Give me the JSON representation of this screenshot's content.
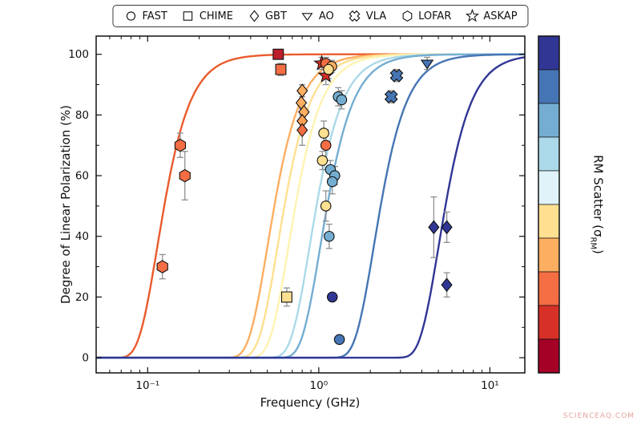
{
  "figure": {
    "watermark": "SCIENCEAQ.COM"
  },
  "legend": {
    "items": [
      {
        "marker": "circle",
        "label": "FAST"
      },
      {
        "marker": "square",
        "label": "CHIME"
      },
      {
        "marker": "diamond",
        "label": "GBT"
      },
      {
        "marker": "triangle-down",
        "label": "AO"
      },
      {
        "marker": "x-square",
        "label": "VLA"
      },
      {
        "marker": "hexagon",
        "label": "LOFAR"
      },
      {
        "marker": "star",
        "label": "ASKAP"
      }
    ]
  },
  "chart_data": {
    "type": "scatter",
    "title": "",
    "xlabel": "Frequency (GHz)",
    "ylabel": "Degree of Linear Polarization (%)",
    "x_scale": "log",
    "xlim": [
      0.05,
      16
    ],
    "ylim": [
      -5,
      106
    ],
    "grid": false,
    "legend_position": "top-center",
    "x_ticks": [
      {
        "value": 0.1,
        "label": "10⁻¹"
      },
      {
        "value": 1,
        "label": "10⁰"
      },
      {
        "value": 10,
        "label": "10¹"
      }
    ],
    "y_ticks": [
      0,
      20,
      40,
      60,
      80,
      100
    ],
    "colorbar": {
      "label_prefix": "RM Scatter (σ",
      "label_sub": "RM",
      "label_suffix": ")",
      "colors_top_to_bottom": [
        "#313695",
        "#4575b4",
        "#74add1",
        "#abd9e9",
        "#e0f3f8",
        "#fee090",
        "#fdae61",
        "#f46d43",
        "#d73027",
        "#a50026"
      ]
    },
    "curves": [
      {
        "nu_half_ghz": 0.125,
        "color": "#ea5b2d"
      },
      {
        "nu_half_ghz": 0.55,
        "color": "#fdae61"
      },
      {
        "nu_half_ghz": 0.63,
        "color": "#fee090"
      },
      {
        "nu_half_ghz": 0.73,
        "color": "#fff3b0"
      },
      {
        "nu_half_ghz": 0.97,
        "color": "#abd9e9"
      },
      {
        "nu_half_ghz": 1.12,
        "color": "#74add1"
      },
      {
        "nu_half_ghz": 2.3,
        "color": "#4575b4"
      },
      {
        "nu_half_ghz": 5.5,
        "color": "#313695"
      }
    ],
    "points": [
      {
        "telescope": "LOFAR",
        "marker": "hexagon",
        "color": "#f46d43",
        "x": 0.155,
        "y": 70,
        "yerr": 4
      },
      {
        "telescope": "LOFAR",
        "marker": "hexagon",
        "color": "#f46d43",
        "x": 0.165,
        "y": 60,
        "yerr": 8
      },
      {
        "telescope": "LOFAR",
        "marker": "hexagon",
        "color": "#f46d43",
        "x": 0.122,
        "y": 30,
        "yerr": 4
      },
      {
        "telescope": "CHIME",
        "marker": "square",
        "color": "#bb1f2a",
        "x": 0.58,
        "y": 100,
        "yerr": 1
      },
      {
        "telescope": "CHIME",
        "marker": "square",
        "color": "#f46d43",
        "x": 0.6,
        "y": 95,
        "yerr": 2
      },
      {
        "telescope": "CHIME",
        "marker": "square",
        "color": "#fee090",
        "x": 0.65,
        "y": 20,
        "yerr": 3
      },
      {
        "telescope": "GBT",
        "marker": "diamond",
        "color": "#fdae61",
        "x": 0.8,
        "y": 88,
        "yerr": 2
      },
      {
        "telescope": "GBT",
        "marker": "diamond",
        "color": "#fdae61",
        "x": 0.79,
        "y": 84,
        "yerr": 3
      },
      {
        "telescope": "GBT",
        "marker": "diamond",
        "color": "#fdae61",
        "x": 0.82,
        "y": 81,
        "yerr": 3
      },
      {
        "telescope": "GBT",
        "marker": "diamond",
        "color": "#f9a054",
        "x": 0.8,
        "y": 78,
        "yerr": 4
      },
      {
        "telescope": "GBT",
        "marker": "diamond",
        "color": "#f46d43",
        "x": 0.8,
        "y": 75,
        "yerr": 5
      },
      {
        "telescope": "ASKAP",
        "marker": "star",
        "color": "#d73027",
        "x": 1.04,
        "y": 97,
        "yerr": 2
      },
      {
        "telescope": "ASKAP",
        "marker": "star",
        "color": "#d73027",
        "x": 1.1,
        "y": 93,
        "yerr": 3
      },
      {
        "telescope": "FAST",
        "marker": "circle",
        "color": "#f46d43",
        "x": 1.1,
        "y": 97,
        "yerr": 2
      },
      {
        "telescope": "FAST",
        "marker": "circle",
        "color": "#fdae61",
        "x": 1.19,
        "y": 96,
        "yerr": 2
      },
      {
        "telescope": "FAST",
        "marker": "circle",
        "color": "#fee090",
        "x": 1.14,
        "y": 95,
        "yerr": 3
      },
      {
        "telescope": "FAST",
        "marker": "circle",
        "color": "#74add1",
        "x": 1.3,
        "y": 86,
        "yerr": 3
      },
      {
        "telescope": "FAST",
        "marker": "circle",
        "color": "#74add1",
        "x": 1.36,
        "y": 85,
        "yerr": 3
      },
      {
        "telescope": "FAST",
        "marker": "circle",
        "color": "#fee090",
        "x": 1.07,
        "y": 74,
        "yerr": 4
      },
      {
        "telescope": "FAST",
        "marker": "circle",
        "color": "#f46d43",
        "x": 1.1,
        "y": 70,
        "yerr": 5
      },
      {
        "telescope": "FAST",
        "marker": "circle",
        "color": "#fee090",
        "x": 1.05,
        "y": 65,
        "yerr": 3
      },
      {
        "telescope": "FAST",
        "marker": "circle",
        "color": "#74add1",
        "x": 1.17,
        "y": 62,
        "yerr": 3
      },
      {
        "telescope": "FAST",
        "marker": "circle",
        "color": "#74add1",
        "x": 1.24,
        "y": 60,
        "yerr": 3
      },
      {
        "telescope": "FAST",
        "marker": "circle",
        "color": "#74add1",
        "x": 1.2,
        "y": 58,
        "yerr": 4
      },
      {
        "telescope": "FAST",
        "marker": "circle",
        "color": "#fee090",
        "x": 1.1,
        "y": 50,
        "yerr": 5
      },
      {
        "telescope": "FAST",
        "marker": "circle",
        "color": "#74add1",
        "x": 1.15,
        "y": 40,
        "yerr": 4
      },
      {
        "telescope": "FAST",
        "marker": "circle",
        "color": "#313695",
        "x": 1.2,
        "y": 20,
        "yerr": 0
      },
      {
        "telescope": "FAST",
        "marker": "circle",
        "color": "#4575b4",
        "x": 1.32,
        "y": 6,
        "yerr": 0
      },
      {
        "telescope": "VLA",
        "marker": "x-square",
        "color": "#4575b4",
        "x": 2.85,
        "y": 93,
        "yerr": 2
      },
      {
        "telescope": "VLA",
        "marker": "x-square",
        "color": "#4575b4",
        "x": 2.65,
        "y": 86,
        "yerr": 2
      },
      {
        "telescope": "AO",
        "marker": "triangle-down",
        "color": "#4575b4",
        "x": 4.3,
        "y": 97,
        "yerr": 2
      },
      {
        "telescope": "GBT",
        "marker": "diamond",
        "color": "#313695",
        "x": 4.7,
        "y": 43,
        "yerr": 10
      },
      {
        "telescope": "GBT",
        "marker": "diamond",
        "color": "#313695",
        "x": 5.6,
        "y": 43,
        "yerr": 5
      },
      {
        "telescope": "GBT",
        "marker": "diamond",
        "color": "#313695",
        "x": 5.6,
        "y": 24,
        "yerr": 4
      }
    ]
  }
}
